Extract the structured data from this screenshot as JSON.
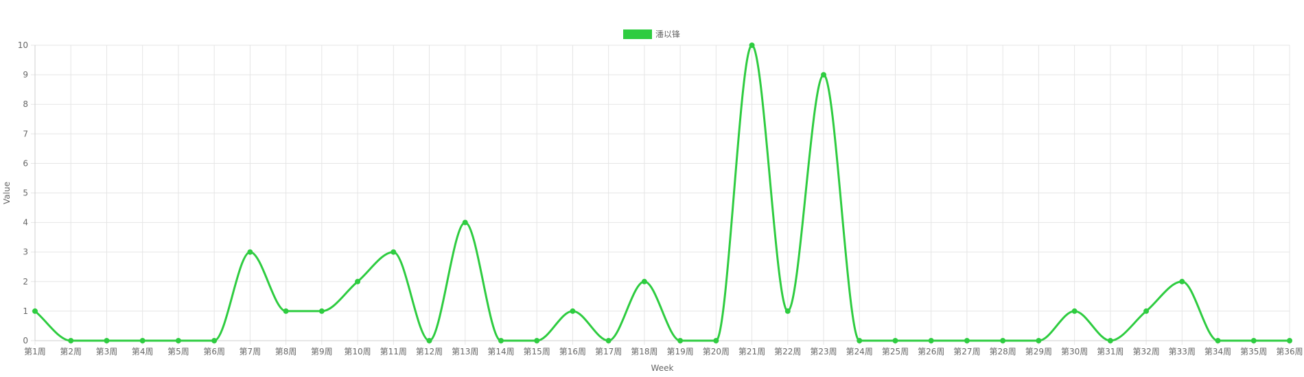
{
  "chart_data": {
    "type": "line",
    "title": "",
    "xlabel": "Week",
    "ylabel": "Value",
    "ylim": [
      0,
      10
    ],
    "ytick_step": 1,
    "grid": true,
    "legend_position": "top",
    "categories": [
      "第1周",
      "第2周",
      "第3周",
      "第4周",
      "第5周",
      "第6周",
      "第7周",
      "第8周",
      "第9周",
      "第10周",
      "第11周",
      "第12周",
      "第13周",
      "第14周",
      "第15周",
      "第16周",
      "第17周",
      "第18周",
      "第19周",
      "第20周",
      "第21周",
      "第22周",
      "第23周",
      "第24周",
      "第25周",
      "第26周",
      "第27周",
      "第28周",
      "第29周",
      "第30周",
      "第31周",
      "第32周",
      "第33周",
      "第34周",
      "第35周",
      "第36周"
    ],
    "series": [
      {
        "name": "潘以锋",
        "color": "#2ecc40",
        "values": [
          1,
          0,
          0,
          0,
          0,
          0,
          3,
          1,
          1,
          2,
          3,
          0,
          4,
          0,
          0,
          1,
          0,
          2,
          0,
          0,
          10,
          1,
          9,
          0,
          0,
          0,
          0,
          0,
          0,
          1,
          0,
          1,
          2,
          0,
          0,
          0
        ]
      }
    ]
  }
}
